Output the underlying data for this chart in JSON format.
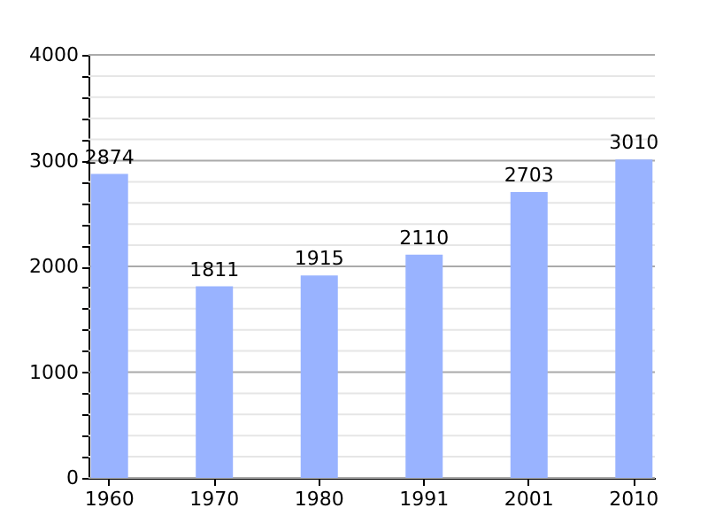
{
  "chart_data": {
    "type": "bar",
    "categories": [
      "1960",
      "1970",
      "1980",
      "1991",
      "2001",
      "2010"
    ],
    "values": [
      2874,
      1811,
      1915,
      2110,
      2703,
      3010
    ],
    "color": "#99b3ff",
    "ylim": [
      0,
      4000
    ],
    "yticks": [
      0,
      {
        "value": 200,
        "label": null
      },
      {
        "value": 400,
        "label": null
      },
      {
        "value": 600,
        "label": null
      },
      {
        "value": 800,
        "label": null
      },
      1000,
      {
        "value": 1200,
        "label": null
      },
      {
        "value": 1400,
        "label": null
      },
      {
        "value": 1600,
        "label": null
      },
      {
        "value": 1800,
        "label": null
      },
      2000,
      {
        "value": 2200,
        "label": null
      },
      {
        "value": 2400,
        "label": null
      },
      {
        "value": 2600,
        "label": null
      },
      {
        "value": 2800,
        "label": null
      },
      3000,
      {
        "value": 3200,
        "label": null
      },
      {
        "value": 3400,
        "label": null
      },
      {
        "value": 3600,
        "label": null
      },
      {
        "value": 3800,
        "label": null
      },
      4000
    ],
    "grid": true,
    "data_labels": true
  }
}
